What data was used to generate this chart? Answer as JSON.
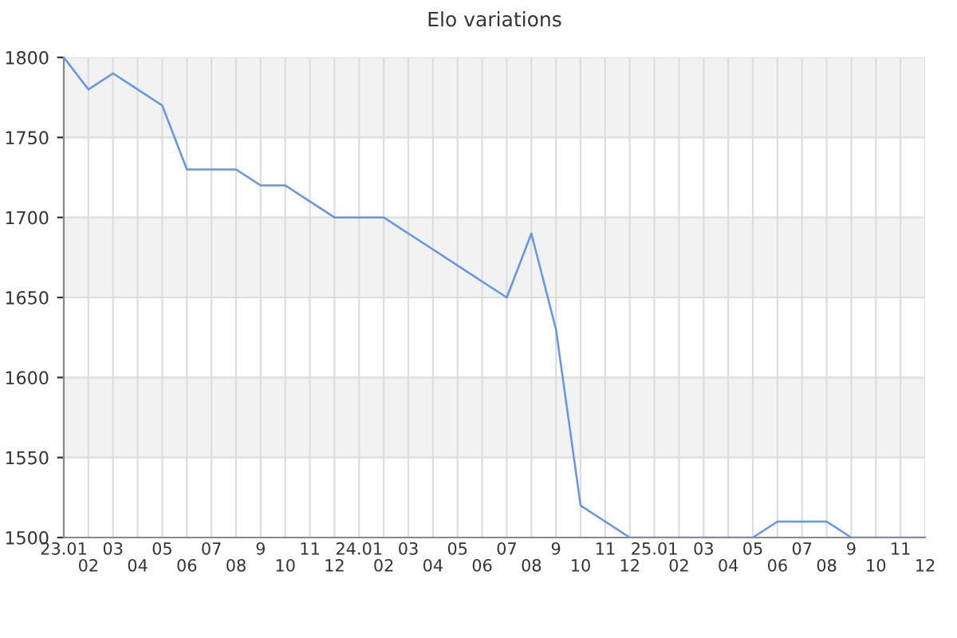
{
  "chart_data": {
    "type": "line",
    "title": "Elo variations",
    "categories": [
      "23.01",
      "02",
      "03",
      "04",
      "05",
      "06",
      "07",
      "08",
      "9",
      "10",
      "11",
      "12",
      "24.01",
      "02",
      "03",
      "04",
      "05",
      "06",
      "07",
      "08",
      "9",
      "10",
      "11",
      "12",
      "25.01",
      "02",
      "03",
      "04",
      "05",
      "06",
      "07",
      "08",
      "9",
      "10",
      "11",
      "12"
    ],
    "series": [
      {
        "color": "#6495ed",
        "values": [
          1800,
          1780,
          1790,
          1780,
          1770,
          1730,
          1730,
          1730,
          1720,
          1720,
          1710,
          1700,
          1700,
          1700,
          1690,
          1680,
          1670,
          1660,
          1650,
          1690,
          1630,
          1520,
          1510,
          1500,
          1500,
          1500,
          1500,
          1500,
          1500,
          1510,
          1510,
          1510,
          1500,
          1500,
          1500,
          1500
        ]
      }
    ],
    "ylim": [
      1500,
      1800
    ],
    "yticks": [
      1500,
      1550,
      1600,
      1650,
      1700,
      1750,
      1800
    ],
    "bands": [
      {
        "axis": "y",
        "from": 1550,
        "to": 1600,
        "color": "#f2f2f2"
      },
      {
        "axis": "y",
        "from": 1650,
        "to": 1700,
        "color": "#f2f2f2"
      },
      {
        "axis": "y",
        "from": 1750,
        "to": 1800,
        "color": "#f2f2f2"
      }
    ],
    "grid": true,
    "marker": "none",
    "line_style": "solid"
  }
}
